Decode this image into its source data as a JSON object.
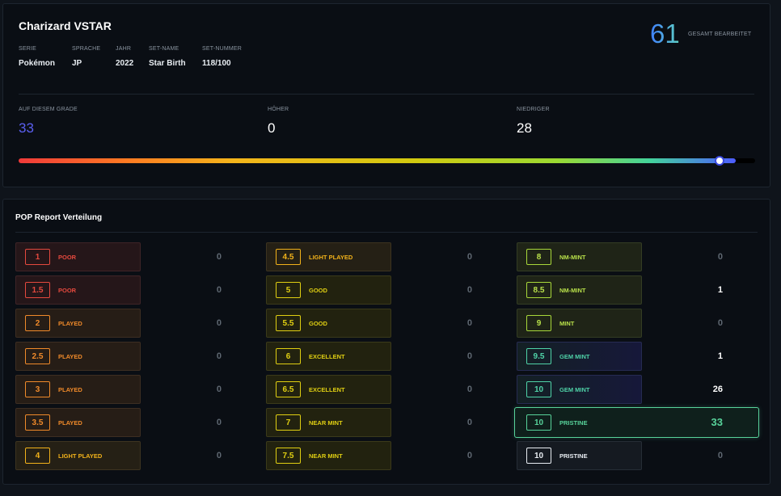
{
  "card": {
    "title": "Charizard VSTAR",
    "meta": [
      {
        "label": "SERIE",
        "value": "Pokémon"
      },
      {
        "label": "SPRACHE",
        "value": "JP"
      },
      {
        "label": "JAHR",
        "value": "2022"
      },
      {
        "label": "SET-NAME",
        "value": "Star Birth"
      },
      {
        "label": "SET-NUMMER",
        "value": "118/100"
      }
    ],
    "total": {
      "value": "61",
      "label": "GESAMT BEARBEITET"
    }
  },
  "stats": {
    "on_grade": {
      "label": "AUF DIESEM GRADE",
      "value": "33"
    },
    "higher": {
      "label": "HÖHER",
      "value": "0"
    },
    "lower": {
      "label": "NIEDRIGER",
      "value": "28"
    },
    "position_fraction": 0.952
  },
  "pop": {
    "title": "POP Report Verteilung",
    "columns": [
      [
        {
          "grade": "1",
          "name": "POOR",
          "count": "0",
          "tone": "red"
        },
        {
          "grade": "1.5",
          "name": "POOR",
          "count": "0",
          "tone": "red"
        },
        {
          "grade": "2",
          "name": "PLAYED",
          "count": "0",
          "tone": "orange"
        },
        {
          "grade": "2.5",
          "name": "PLAYED",
          "count": "0",
          "tone": "orange"
        },
        {
          "grade": "3",
          "name": "PLAYED",
          "count": "0",
          "tone": "orange"
        },
        {
          "grade": "3.5",
          "name": "PLAYED",
          "count": "0",
          "tone": "orange"
        },
        {
          "grade": "4",
          "name": "LIGHT PLAYED",
          "count": "0",
          "tone": "amber"
        }
      ],
      [
        {
          "grade": "4.5",
          "name": "LIGHT PLAYED",
          "count": "0",
          "tone": "amber"
        },
        {
          "grade": "5",
          "name": "GOOD",
          "count": "0",
          "tone": "yellow"
        },
        {
          "grade": "5.5",
          "name": "GOOD",
          "count": "0",
          "tone": "yellow"
        },
        {
          "grade": "6",
          "name": "EXCELLENT",
          "count": "0",
          "tone": "yellow"
        },
        {
          "grade": "6.5",
          "name": "EXCELLENT",
          "count": "0",
          "tone": "yellow"
        },
        {
          "grade": "7",
          "name": "NEAR MINT",
          "count": "0",
          "tone": "yellow"
        },
        {
          "grade": "7.5",
          "name": "NEAR MINT",
          "count": "0",
          "tone": "yellow"
        }
      ],
      [
        {
          "grade": "8",
          "name": "NM-MINT",
          "count": "0",
          "tone": "lime"
        },
        {
          "grade": "8.5",
          "name": "NM-MINT",
          "count": "1",
          "tone": "lime"
        },
        {
          "grade": "9",
          "name": "MINT",
          "count": "0",
          "tone": "lime"
        },
        {
          "grade": "9.5",
          "name": "GEM MINT",
          "count": "1",
          "tone": "gem"
        },
        {
          "grade": "10",
          "name": "GEM MINT",
          "count": "26",
          "tone": "gem"
        },
        {
          "grade": "10",
          "name": "PRISTINE",
          "count": "33",
          "tone": "pristine-hl",
          "current": true
        },
        {
          "grade": "10",
          "name": "PRISTINE",
          "count": "0",
          "tone": "white"
        }
      ]
    ]
  }
}
